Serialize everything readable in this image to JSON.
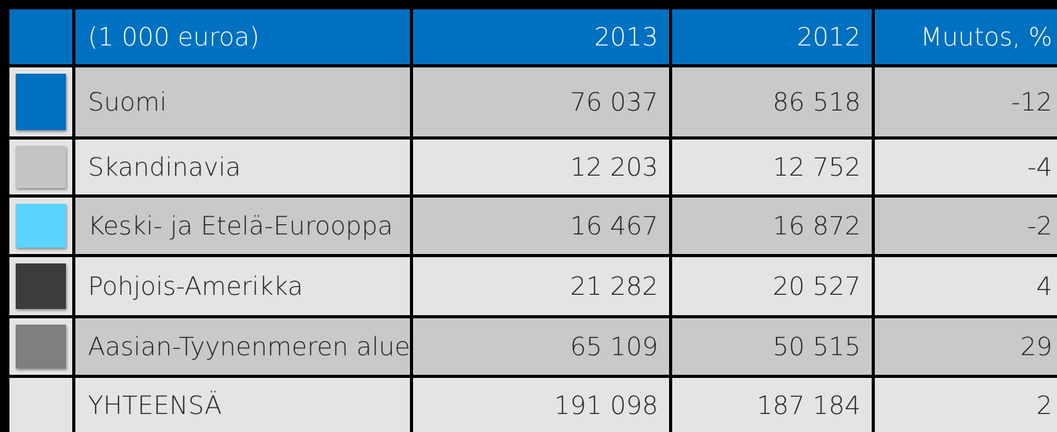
{
  "table": {
    "header": [
      "(1 000 euroa)",
      "2013",
      "2012",
      "Muutos, %"
    ],
    "rows": [
      {
        "color": "#0070c0",
        "cells": [
          "Suomi",
          "76 037",
          "86 518",
          "-12"
        ]
      },
      {
        "color": "#c4c4c4",
        "cells": [
          "Skandinavia",
          "12 203",
          "12 752",
          "-4"
        ]
      },
      {
        "color": "#5bd3ff",
        "cells": [
          "Keski- ja Etelä-Eurooppa",
          "16 467",
          "16 872",
          "-2"
        ]
      },
      {
        "color": "#3c3c3c",
        "cells": [
          "Pohjois-Amerikka",
          "21 282",
          "20 527",
          "4"
        ]
      },
      {
        "color": "#7f7f7f",
        "cells": [
          "Aasian-Tyynenmeren alue",
          "65 109",
          "50 515",
          "29"
        ]
      },
      {
        "color": null,
        "cells": [
          "YHTEENSÄ",
          "191 098",
          "187 184",
          "2"
        ]
      }
    ]
  }
}
